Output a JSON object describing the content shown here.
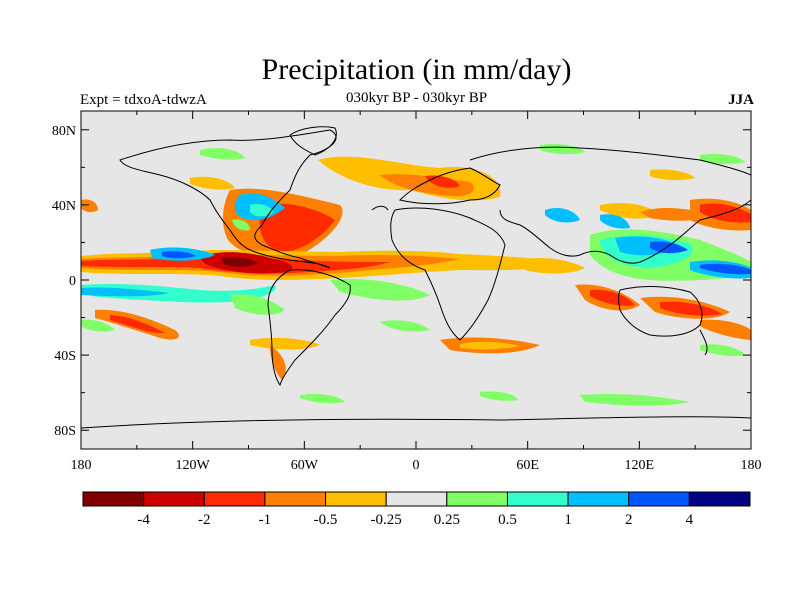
{
  "title": "Precipitation (in mm/day)",
  "subtitle": "030kyr BP - 030kyr BP",
  "left_string": "Expt = tdxoA-tdwzA",
  "right_string": "JJA",
  "map": {
    "projection": "cylindrical equidistant",
    "lon_range": [
      -180,
      180
    ],
    "lat_range": [
      -90,
      90
    ],
    "background_color": "#e6e6e6",
    "lat_tick_labels": [
      "80N",
      "40N",
      "0",
      "40S",
      "80S"
    ],
    "lon_tick_labels": [
      "180",
      "120W",
      "60W",
      "0",
      "60E",
      "120E",
      "180"
    ]
  },
  "colorbar": {
    "colors": [
      "#800000",
      "#cc0000",
      "#ff2a00",
      "#ff7f00",
      "#ffbf00",
      "#e6e6e6",
      "#80ff66",
      "#33ffcc",
      "#00bfff",
      "#0055ff",
      "#000080"
    ],
    "labels": [
      "-4",
      "-2",
      "-1",
      "-0.5",
      "-0.25",
      "0.25",
      "0.5",
      "1",
      "2",
      "4"
    ]
  }
}
